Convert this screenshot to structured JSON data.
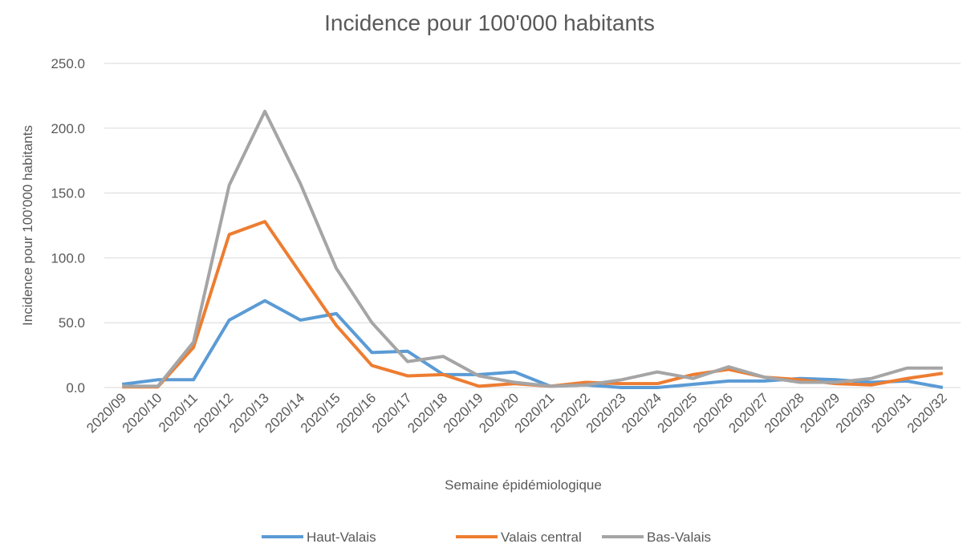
{
  "chart_data": {
    "type": "line",
    "title": "Incidence pour 100'000 habitants",
    "x_label": "Semaine épidémiologique",
    "y_label": "Incidence pour 100'000 habitants",
    "categories": [
      "2020/09",
      "2020/10",
      "2020/11",
      "2020/12",
      "2020/13",
      "2020/14",
      "2020/15",
      "2020/16",
      "2020/17",
      "2020/18",
      "2020/19",
      "2020/20",
      "2020/21",
      "2020/22",
      "2020/23",
      "2020/24",
      "2020/25",
      "2020/26",
      "2020/27",
      "2020/28",
      "2020/29",
      "2020/30",
      "2020/31",
      "2020/32"
    ],
    "series": [
      {
        "name": "Haut-Valais",
        "color": "#5b9bd5",
        "values": [
          2.5,
          6,
          6,
          52,
          67,
          52,
          57,
          27,
          28,
          10,
          10,
          12,
          1,
          2,
          0,
          0,
          2.5,
          5,
          5,
          7,
          6,
          4,
          5,
          0
        ]
      },
      {
        "name": "Valais central",
        "color": "#ed7d31",
        "values": [
          0.5,
          0.5,
          31,
          118,
          128,
          88,
          48,
          17,
          9,
          10,
          1,
          3,
          1,
          4,
          3,
          3,
          10,
          14,
          8,
          6,
          3,
          2,
          7,
          11
        ]
      },
      {
        "name": "Bas-Valais",
        "color": "#a5a5a5",
        "values": [
          1,
          1,
          35,
          156,
          213,
          157,
          92,
          50,
          20,
          24,
          9,
          4,
          1,
          2,
          6,
          12,
          7,
          16,
          8,
          4,
          4,
          7,
          15,
          15
        ]
      }
    ],
    "ylim": [
      0,
      250
    ],
    "yticks": [
      {
        "value": 0,
        "label": "0.0"
      },
      {
        "value": 50,
        "label": "50.0"
      },
      {
        "value": 100,
        "label": "100.0"
      },
      {
        "value": 150,
        "label": "150.0"
      },
      {
        "value": 200,
        "label": "200.0"
      },
      {
        "value": 250,
        "label": "250.0"
      }
    ],
    "grid": true,
    "legend": "bottom"
  }
}
